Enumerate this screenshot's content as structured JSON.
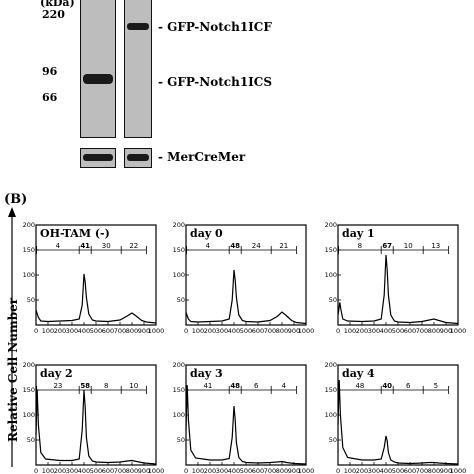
{
  "panelA": {
    "unit_label": "(kDa)",
    "mw_markers": [
      "220",
      "96",
      "66"
    ],
    "band_labels": [
      "- GFP-Notch1ICF",
      "- GFP-Notch1ICS"
    ],
    "loading_label": "- MerCreMer"
  },
  "panelB": {
    "label": "(B)",
    "y_axis_label": "Relative Cell Number"
  },
  "chart_data": [
    {
      "type": "line",
      "title": "OH-TAM (-)",
      "xlim": [
        0,
        1000
      ],
      "ylim": [
        0,
        200
      ],
      "x_ticks": [
        "0",
        "100",
        "200",
        "300",
        "400",
        "500",
        "600",
        "700",
        "800",
        "900",
        "1000"
      ],
      "y_ticks": [
        "50",
        "100",
        "150",
        "200"
      ],
      "gates": [
        "4",
        "41",
        "30",
        "22"
      ],
      "x": [
        0,
        20,
        40,
        100,
        200,
        300,
        360,
        385,
        400,
        410,
        420,
        440,
        470,
        500,
        600,
        700,
        760,
        800,
        840,
        880,
        920,
        1000
      ],
      "y": [
        30,
        15,
        8,
        7,
        8,
        9,
        12,
        40,
        102,
        85,
        55,
        22,
        10,
        8,
        7,
        10,
        18,
        24,
        17,
        9,
        6,
        4
      ]
    },
    {
      "type": "line",
      "title": "day 0",
      "xlim": [
        0,
        1000
      ],
      "ylim": [
        0,
        200
      ],
      "x_ticks": [
        "0",
        "100",
        "200",
        "300",
        "400",
        "500",
        "600",
        "700",
        "800",
        "900",
        "1000"
      ],
      "y_ticks": [
        "50",
        "100",
        "150",
        "200"
      ],
      "gates": [
        "4",
        "48",
        "24",
        "21"
      ],
      "x": [
        0,
        20,
        40,
        100,
        200,
        300,
        360,
        385,
        400,
        410,
        420,
        440,
        470,
        500,
        600,
        700,
        760,
        800,
        840,
        880,
        920,
        1000
      ],
      "y": [
        25,
        12,
        7,
        6,
        7,
        8,
        12,
        50,
        110,
        90,
        55,
        20,
        9,
        7,
        6,
        9,
        17,
        26,
        18,
        9,
        5,
        3
      ]
    },
    {
      "type": "line",
      "title": "day 1",
      "xlim": [
        0,
        1000
      ],
      "ylim": [
        0,
        200
      ],
      "x_ticks": [
        "0",
        "100",
        "200",
        "300",
        "400",
        "500",
        "600",
        "700",
        "800",
        "900",
        "1000"
      ],
      "y_ticks": [
        "50",
        "100",
        "150",
        "200"
      ],
      "gates": [
        "8",
        "67",
        "10",
        "13"
      ],
      "x": [
        0,
        15,
        25,
        40,
        80,
        200,
        300,
        360,
        385,
        400,
        410,
        420,
        440,
        470,
        500,
        600,
        700,
        760,
        800,
        840,
        900,
        1000
      ],
      "y": [
        20,
        45,
        30,
        12,
        8,
        7,
        8,
        12,
        60,
        140,
        110,
        60,
        20,
        8,
        6,
        5,
        7,
        10,
        12,
        9,
        5,
        3
      ]
    },
    {
      "type": "line",
      "title": "day 2",
      "xlim": [
        0,
        1000
      ],
      "ylim": [
        0,
        200
      ],
      "x_ticks": [
        "0",
        "100",
        "200",
        "300",
        "400",
        "500",
        "600",
        "700",
        "800",
        "900",
        "1000"
      ],
      "y_ticks": [
        "50",
        "100",
        "150",
        "200"
      ],
      "gates": [
        "23",
        "58",
        "8",
        "10"
      ],
      "x": [
        0,
        10,
        20,
        40,
        80,
        200,
        300,
        360,
        385,
        400,
        410,
        420,
        440,
        470,
        500,
        600,
        700,
        760,
        800,
        840,
        900,
        1000
      ],
      "y": [
        60,
        150,
        80,
        25,
        12,
        9,
        9,
        12,
        70,
        150,
        115,
        55,
        18,
        8,
        6,
        5,
        6,
        8,
        9,
        7,
        4,
        2
      ]
    },
    {
      "type": "line",
      "title": "day 3",
      "xlim": [
        0,
        1000
      ],
      "ylim": [
        0,
        200
      ],
      "x_ticks": [
        "0",
        "100",
        "200",
        "300",
        "400",
        "500",
        "600",
        "700",
        "800",
        "900",
        "1000"
      ],
      "y_ticks": [
        "50",
        "100",
        "150",
        "200"
      ],
      "gates": [
        "41",
        "48",
        "6",
        "4"
      ],
      "x": [
        0,
        10,
        20,
        40,
        80,
        200,
        300,
        360,
        385,
        400,
        410,
        420,
        440,
        470,
        500,
        600,
        700,
        760,
        800,
        840,
        900,
        1000
      ],
      "y": [
        70,
        160,
        90,
        30,
        14,
        10,
        10,
        13,
        55,
        118,
        90,
        45,
        15,
        7,
        5,
        4,
        5,
        6,
        7,
        5,
        3,
        2
      ]
    },
    {
      "type": "line",
      "title": "day 4",
      "xlim": [
        0,
        1000
      ],
      "ylim": [
        0,
        200
      ],
      "x_ticks": [
        "0",
        "100",
        "200",
        "300",
        "400",
        "500",
        "600",
        "700",
        "800",
        "900",
        "1000"
      ],
      "y_ticks": [
        "50",
        "100",
        "150",
        "200"
      ],
      "gates": [
        "48",
        "40",
        "6",
        "5"
      ],
      "x": [
        0,
        10,
        20,
        40,
        80,
        200,
        300,
        360,
        385,
        400,
        410,
        420,
        440,
        470,
        500,
        600,
        700,
        760,
        800,
        840,
        900,
        1000
      ],
      "y": [
        80,
        170,
        100,
        35,
        15,
        10,
        10,
        12,
        35,
        58,
        48,
        25,
        10,
        6,
        4,
        3,
        4,
        5,
        5,
        4,
        3,
        2
      ]
    }
  ]
}
